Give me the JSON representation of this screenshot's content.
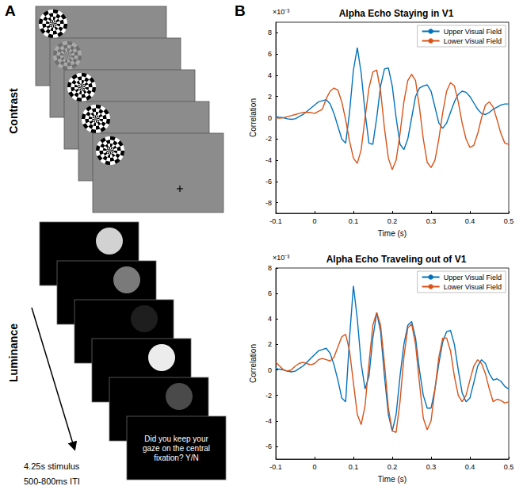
{
  "panel_a": {
    "label": "A",
    "rows": [
      {
        "label": "Contrast"
      },
      {
        "label": "Luminance"
      }
    ],
    "duration": "4.25s stimulus",
    "iti": "500-800ms ITI",
    "question": "Did you keep your gaze on the central fixation? Y/N"
  },
  "panel_b": {
    "label": "B"
  },
  "chart_data": [
    {
      "type": "line",
      "title": "Alpha Echo Staying in V1",
      "x_label": "Time (s)",
      "y_label": "Correlation",
      "y_multiplier": "×10⁻³",
      "x": [
        -0.1,
        -0.09,
        -0.08,
        -0.07,
        -0.06,
        -0.05,
        -0.04,
        -0.03,
        -0.02,
        -0.01,
        0,
        0.01,
        0.02,
        0.03,
        0.04,
        0.05,
        0.06,
        0.07,
        0.08,
        0.09,
        0.1,
        0.11,
        0.12,
        0.13,
        0.14,
        0.15,
        0.16,
        0.17,
        0.18,
        0.19,
        0.2,
        0.21,
        0.22,
        0.23,
        0.24,
        0.25,
        0.26,
        0.27,
        0.28,
        0.29,
        0.3,
        0.31,
        0.32,
        0.33,
        0.34,
        0.35,
        0.36,
        0.37,
        0.38,
        0.39,
        0.4,
        0.41,
        0.42,
        0.43,
        0.44,
        0.45,
        0.46,
        0.47,
        0.48,
        0.49,
        0.5
      ],
      "xlim": [
        -0.1,
        0.5
      ],
      "xticks": [
        -0.1,
        0,
        0.1,
        0.2,
        0.3,
        0.4,
        0.5
      ],
      "ylim": [
        -9,
        9
      ],
      "yticks": [
        -8,
        -6,
        -4,
        -2,
        0,
        2,
        4,
        6,
        8
      ],
      "grid": false,
      "legend": "upper right",
      "series": [
        {
          "name": "Upper Visual Field",
          "color": "#0072BD",
          "values": [
            0.1,
            0.05,
            0.0,
            -0.1,
            -0.15,
            -0.1,
            0.1,
            0.3,
            0.6,
            0.9,
            1.2,
            1.5,
            1.6,
            1.7,
            1.3,
            0.4,
            -0.8,
            -2.0,
            -2.4,
            0.5,
            4.5,
            6.6,
            4.2,
            0.5,
            -2.4,
            -2.5,
            0.0,
            3.0,
            4.6,
            4.7,
            3.0,
            0.0,
            -2.5,
            -3.0,
            -2.0,
            0.0,
            2.0,
            2.8,
            3.0,
            3.1,
            2.5,
            1.0,
            -0.5,
            -1.0,
            -0.5,
            0.5,
            1.5,
            2.2,
            2.5,
            2.4,
            2.0,
            1.4,
            0.8,
            0.4,
            0.3,
            0.5,
            0.8,
            1.0,
            1.2,
            1.3,
            1.3
          ]
        },
        {
          "name": "Lower Visual Field",
          "color": "#D95319",
          "values": [
            0.0,
            -0.05,
            0.0,
            0.1,
            0.2,
            0.3,
            0.4,
            0.5,
            0.5,
            0.5,
            0.4,
            0.6,
            0.8,
            1.8,
            2.5,
            2.8,
            2.6,
            1.5,
            -0.2,
            -2.2,
            -3.8,
            -4.3,
            -3.0,
            0.0,
            2.8,
            4.3,
            4.5,
            2.5,
            -1.0,
            -3.8,
            -4.9,
            -4.0,
            -1.5,
            1.5,
            3.5,
            4.1,
            3.5,
            1.0,
            -2.0,
            -4.2,
            -4.7,
            -4.0,
            -2.0,
            0.5,
            2.5,
            3.3,
            3.0,
            1.5,
            -0.5,
            -2.0,
            -2.8,
            -2.6,
            -1.5,
            0.0,
            1.2,
            1.5,
            1.0,
            -0.2,
            -1.5,
            -2.4,
            -2.5
          ]
        }
      ]
    },
    {
      "type": "line",
      "title": "Alpha Echo Traveling out of V1",
      "x_label": "Time (s)",
      "y_label": "Correlation",
      "y_multiplier": "×10⁻³",
      "x": [
        -0.1,
        -0.09,
        -0.08,
        -0.07,
        -0.06,
        -0.05,
        -0.04,
        -0.03,
        -0.02,
        -0.01,
        0,
        0.01,
        0.02,
        0.03,
        0.04,
        0.05,
        0.06,
        0.07,
        0.08,
        0.09,
        0.1,
        0.11,
        0.12,
        0.13,
        0.14,
        0.15,
        0.16,
        0.17,
        0.18,
        0.19,
        0.2,
        0.21,
        0.22,
        0.23,
        0.24,
        0.25,
        0.26,
        0.27,
        0.28,
        0.29,
        0.3,
        0.31,
        0.32,
        0.33,
        0.34,
        0.35,
        0.36,
        0.37,
        0.38,
        0.39,
        0.4,
        0.41,
        0.42,
        0.43,
        0.44,
        0.45,
        0.46,
        0.47,
        0.48,
        0.49,
        0.5
      ],
      "xlim": [
        -0.1,
        0.5
      ],
      "xticks": [
        -0.1,
        0,
        0.1,
        0.2,
        0.3,
        0.4,
        0.5
      ],
      "ylim": [
        -7,
        8
      ],
      "yticks": [
        -6,
        -4,
        -2,
        0,
        2,
        4,
        6,
        8
      ],
      "grid": false,
      "legend": "upper right",
      "series": [
        {
          "name": "Upper Visual Field",
          "color": "#0072BD",
          "values": [
            0.1,
            0.05,
            0.0,
            -0.1,
            -0.15,
            -0.1,
            0.1,
            0.3,
            0.6,
            0.9,
            1.2,
            1.5,
            1.6,
            1.7,
            1.3,
            0.4,
            -0.8,
            -2.2,
            -2.5,
            2.5,
            6.6,
            4.0,
            0.5,
            -1.5,
            -0.5,
            2.5,
            4.5,
            3.0,
            -0.5,
            -3.5,
            -4.8,
            -3.5,
            -0.5,
            2.0,
            3.5,
            3.8,
            2.5,
            0.0,
            -2.0,
            -3.0,
            -3.0,
            -1.5,
            0.5,
            2.2,
            3.0,
            3.1,
            2.0,
            0.0,
            -1.8,
            -2.5,
            -2.2,
            -1.0,
            0.3,
            0.8,
            0.5,
            -0.3,
            -0.8,
            -0.7,
            -0.9,
            -1.3,
            -1.5
          ]
        },
        {
          "name": "Lower Visual Field",
          "color": "#D95319",
          "values": [
            0.6,
            0.3,
            0.0,
            -0.1,
            0.0,
            0.3,
            0.5,
            0.6,
            0.5,
            0.4,
            0.5,
            0.8,
            0.9,
            0.8,
            0.7,
            1.0,
            1.8,
            2.6,
            2.8,
            1.5,
            -1.0,
            -3.5,
            -4.3,
            -2.8,
            0.5,
            3.5,
            4.5,
            3.5,
            0.5,
            -3.0,
            -4.8,
            -4.9,
            -2.5,
            1.0,
            3.3,
            3.6,
            2.0,
            -1.0,
            -3.8,
            -4.7,
            -4.0,
            -1.5,
            1.0,
            2.5,
            2.5,
            1.5,
            -0.5,
            -2.0,
            -2.5,
            -2.0,
            -0.8,
            0.3,
            0.8,
            0.5,
            -0.3,
            -1.5,
            -2.5,
            -2.3,
            -2.4,
            -2.6,
            -2.5
          ]
        }
      ]
    }
  ]
}
